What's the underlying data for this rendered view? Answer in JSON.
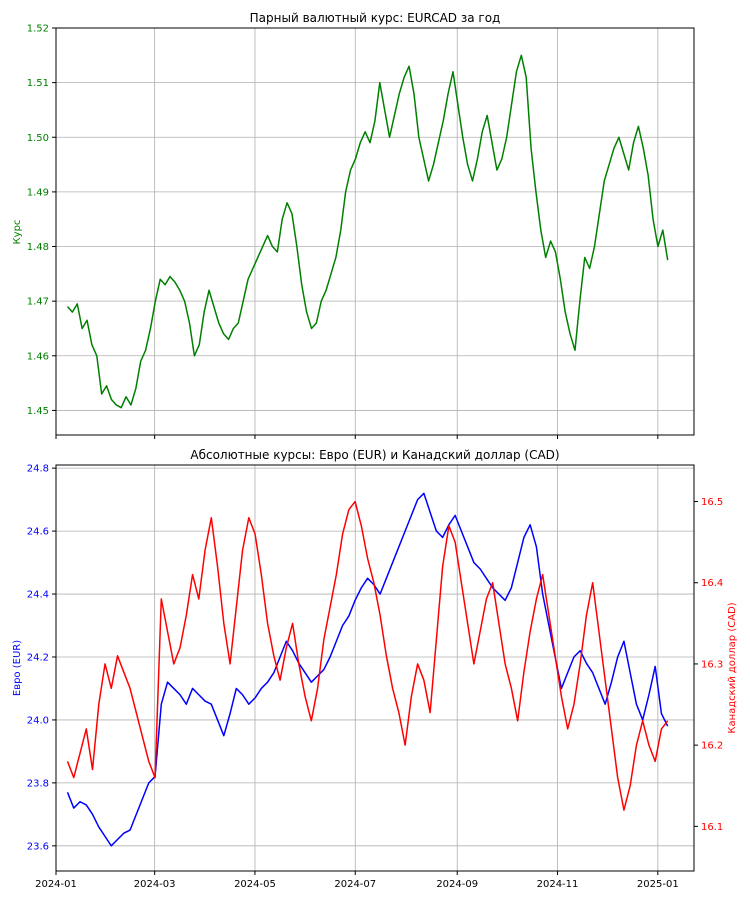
{
  "colors": {
    "eurcad": "#008000",
    "eur": "#0000ff",
    "cad": "#ff0000",
    "grid": "#b0b0b0",
    "axis": "#000000"
  },
  "chart_data": [
    {
      "type": "line",
      "title": "Парный валютный курс: EURCAD за год",
      "ylabel": "Курс",
      "xlabel": "",
      "x_range": [
        "2024-01-01",
        "2025-01-23"
      ],
      "ylim": [
        1.4455,
        1.52
      ],
      "y_ticks": [
        1.45,
        1.46,
        1.47,
        1.48,
        1.49,
        1.5,
        1.51,
        1.52
      ],
      "y_tick_labels": [
        "1.45",
        "1.46",
        "1.47",
        "1.48",
        "1.49",
        "1.50",
        "1.51",
        "1.52"
      ],
      "x_ticks": [
        "2024-01-01",
        "2024-03-01",
        "2024-05-01",
        "2024-07-01",
        "2024-09-01",
        "2024-11-01",
        "2025-01-01"
      ],
      "grid": true,
      "series": [
        {
          "color": "#008000",
          "x_start": "2024-01-08",
          "x_end": "2025-01-07",
          "values": [
            1.469,
            1.468,
            1.4695,
            1.465,
            1.4665,
            1.462,
            1.46,
            1.453,
            1.4545,
            1.452,
            1.451,
            1.4505,
            1.4525,
            1.451,
            1.454,
            1.459,
            1.461,
            1.465,
            1.47,
            1.474,
            1.473,
            1.4745,
            1.4735,
            1.472,
            1.47,
            1.466,
            1.46,
            1.462,
            1.468,
            1.472,
            1.469,
            1.466,
            1.464,
            1.463,
            1.465,
            1.466,
            1.47,
            1.474,
            1.476,
            1.478,
            1.48,
            1.482,
            1.48,
            1.479,
            1.485,
            1.488,
            1.486,
            1.48,
            1.473,
            1.468,
            1.465,
            1.466,
            1.47,
            1.472,
            1.475,
            1.478,
            1.483,
            1.49,
            1.494,
            1.496,
            1.499,
            1.501,
            1.499,
            1.503,
            1.51,
            1.505,
            1.5,
            1.504,
            1.508,
            1.511,
            1.513,
            1.508,
            1.5,
            1.496,
            1.492,
            1.495,
            1.499,
            1.503,
            1.508,
            1.512,
            1.506,
            1.5,
            1.495,
            1.492,
            1.496,
            1.501,
            1.504,
            1.499,
            1.494,
            1.496,
            1.5,
            1.506,
            1.512,
            1.515,
            1.511,
            1.498,
            1.49,
            1.483,
            1.478,
            1.481,
            1.479,
            1.474,
            1.468,
            1.464,
            1.461,
            1.47,
            1.478,
            1.476,
            1.48,
            1.486,
            1.492,
            1.495,
            1.498,
            1.5,
            1.497,
            1.494,
            1.499,
            1.502,
            1.498,
            1.493,
            1.485,
            1.48,
            1.483,
            1.4775
          ]
        }
      ]
    },
    {
      "type": "line",
      "title": "Абсолютные курсы: Евро (EUR) и Канадский доллар (CAD)",
      "ylabel": "Евро (EUR)",
      "y2label": "Канадский доллар (CAD)",
      "xlabel": "",
      "x_range": [
        "2024-01-01",
        "2025-01-23"
      ],
      "ylim": [
        23.52,
        24.81
      ],
      "y2lim": [
        16.045,
        16.545
      ],
      "y_ticks": [
        23.6,
        23.8,
        24.0,
        24.2,
        24.4,
        24.6,
        24.8
      ],
      "y_tick_labels": [
        "23.6",
        "23.8",
        "24.0",
        "24.2",
        "24.4",
        "24.6",
        "24.8"
      ],
      "y2_ticks": [
        16.1,
        16.2,
        16.3,
        16.4,
        16.5
      ],
      "y2_tick_labels": [
        "16.1",
        "16.2",
        "16.3",
        "16.4",
        "16.5"
      ],
      "x_ticks": [
        "2024-01-01",
        "2024-03-01",
        "2024-05-01",
        "2024-07-01",
        "2024-09-01",
        "2024-11-01",
        "2025-01-01"
      ],
      "x_tick_labels": [
        "2024-01",
        "2024-03",
        "2024-05",
        "2024-07",
        "2024-09",
        "2024-11",
        "2025-01"
      ],
      "grid": true,
      "series": [
        {
          "axis": "left",
          "color": "#0000ff",
          "x_start": "2024-01-08",
          "x_end": "2025-01-07",
          "values": [
            23.77,
            23.72,
            23.74,
            23.73,
            23.7,
            23.66,
            23.63,
            23.6,
            23.62,
            23.64,
            23.65,
            23.7,
            23.75,
            23.8,
            23.82,
            24.05,
            24.12,
            24.1,
            24.08,
            24.05,
            24.1,
            24.08,
            24.06,
            24.05,
            24.0,
            23.95,
            24.02,
            24.1,
            24.08,
            24.05,
            24.07,
            24.1,
            24.12,
            24.15,
            24.2,
            24.25,
            24.22,
            24.18,
            24.15,
            24.12,
            24.14,
            24.16,
            24.2,
            24.25,
            24.3,
            24.33,
            24.38,
            24.42,
            24.45,
            24.43,
            24.4,
            24.45,
            24.5,
            24.55,
            24.6,
            24.65,
            24.7,
            24.72,
            24.66,
            24.6,
            24.58,
            24.62,
            24.65,
            24.6,
            24.55,
            24.5,
            24.48,
            24.45,
            24.42,
            24.4,
            24.38,
            24.42,
            24.5,
            24.58,
            24.62,
            24.55,
            24.4,
            24.3,
            24.2,
            24.1,
            24.15,
            24.2,
            24.22,
            24.18,
            24.15,
            24.1,
            24.05,
            24.12,
            24.2,
            24.25,
            24.15,
            24.05,
            24.0,
            24.08,
            24.17,
            24.02,
            23.98
          ]
        },
        {
          "axis": "right",
          "color": "#ff0000",
          "x_start": "2024-01-08",
          "x_end": "2025-01-07",
          "values": [
            16.18,
            16.16,
            16.19,
            16.22,
            16.17,
            16.25,
            16.3,
            16.27,
            16.31,
            16.29,
            16.27,
            16.24,
            16.21,
            16.18,
            16.16,
            16.38,
            16.34,
            16.3,
            16.32,
            16.36,
            16.41,
            16.38,
            16.44,
            16.48,
            16.42,
            16.35,
            16.3,
            16.37,
            16.44,
            16.48,
            16.46,
            16.41,
            16.35,
            16.31,
            16.28,
            16.32,
            16.35,
            16.3,
            16.26,
            16.23,
            16.27,
            16.33,
            16.37,
            16.41,
            16.46,
            16.49,
            16.5,
            16.47,
            16.43,
            16.4,
            16.36,
            16.31,
            16.27,
            16.24,
            16.2,
            16.26,
            16.3,
            16.28,
            16.24,
            16.33,
            16.42,
            16.47,
            16.45,
            16.4,
            16.35,
            16.3,
            16.34,
            16.38,
            16.4,
            16.35,
            16.3,
            16.27,
            16.23,
            16.29,
            16.34,
            16.38,
            16.41,
            16.36,
            16.31,
            16.26,
            16.22,
            16.25,
            16.3,
            16.36,
            16.4,
            16.34,
            16.28,
            16.22,
            16.16,
            16.12,
            16.15,
            16.2,
            16.23,
            16.2,
            16.18,
            16.22,
            16.23
          ]
        }
      ]
    }
  ]
}
